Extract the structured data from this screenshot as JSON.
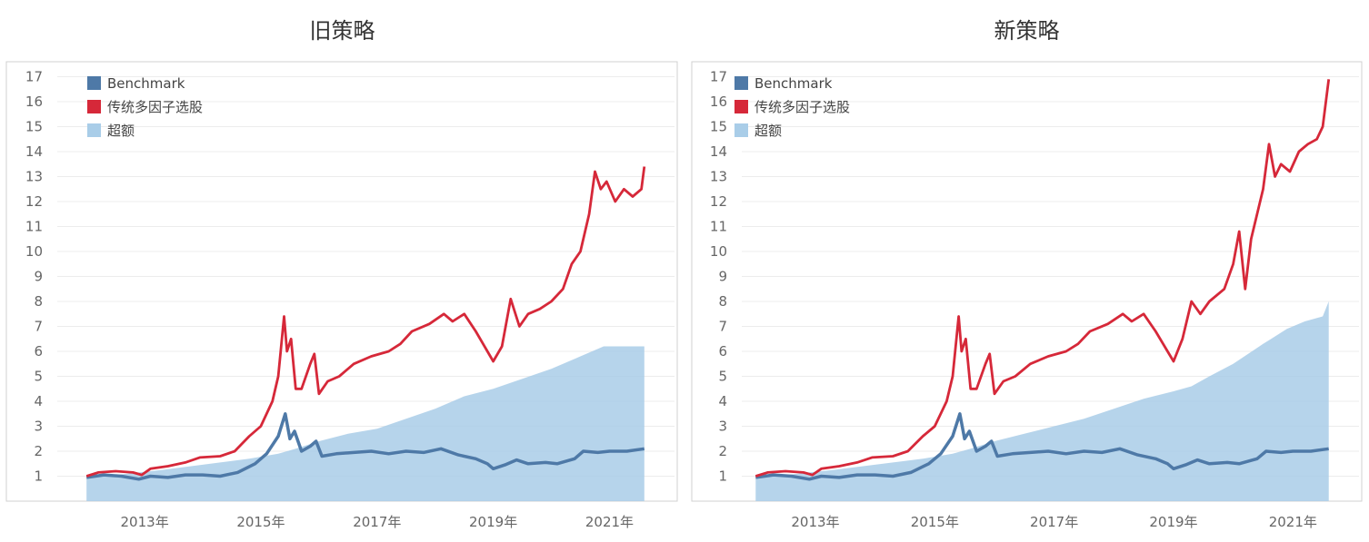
{
  "colors": {
    "benchmark": "#4e79a7",
    "strategy": "#d62839",
    "excess_fill": "#a9cde8",
    "grid": "#ececec",
    "frame": "#d0d0d0"
  },
  "chart_data": [
    {
      "type": "line",
      "title": "旧策略",
      "xlabel": "",
      "ylabel": "",
      "x_range": [
        2011.95,
        2021.65
      ],
      "ylim": [
        0,
        17.6
      ],
      "y_ticks": [
        1,
        2,
        3,
        4,
        5,
        6,
        7,
        8,
        9,
        10,
        11,
        12,
        13,
        14,
        15,
        16,
        17
      ],
      "x_ticks": [
        {
          "x": 2013,
          "label": "2013年"
        },
        {
          "x": 2015,
          "label": "2015年"
        },
        {
          "x": 2017,
          "label": "2017年"
        },
        {
          "x": 2019,
          "label": "2019年"
        },
        {
          "x": 2021,
          "label": "2021年"
        }
      ],
      "grid": true,
      "legend_position": "top-left",
      "series": [
        {
          "name": "Benchmark",
          "kind": "line",
          "points": [
            [
              2012.0,
              0.95
            ],
            [
              2012.3,
              1.05
            ],
            [
              2012.6,
              1.0
            ],
            [
              2012.9,
              0.88
            ],
            [
              2013.1,
              1.0
            ],
            [
              2013.4,
              0.95
            ],
            [
              2013.7,
              1.05
            ],
            [
              2014.0,
              1.05
            ],
            [
              2014.3,
              1.0
            ],
            [
              2014.6,
              1.15
            ],
            [
              2014.9,
              1.5
            ],
            [
              2015.1,
              1.9
            ],
            [
              2015.3,
              2.6
            ],
            [
              2015.42,
              3.5
            ],
            [
              2015.5,
              2.5
            ],
            [
              2015.58,
              2.8
            ],
            [
              2015.7,
              2.0
            ],
            [
              2015.85,
              2.2
            ],
            [
              2015.95,
              2.4
            ],
            [
              2016.05,
              1.8
            ],
            [
              2016.3,
              1.9
            ],
            [
              2016.6,
              1.95
            ],
            [
              2016.9,
              2.0
            ],
            [
              2017.2,
              1.9
            ],
            [
              2017.5,
              2.0
            ],
            [
              2017.8,
              1.95
            ],
            [
              2018.1,
              2.1
            ],
            [
              2018.4,
              1.85
            ],
            [
              2018.7,
              1.7
            ],
            [
              2018.9,
              1.5
            ],
            [
              2019.0,
              1.3
            ],
            [
              2019.2,
              1.45
            ],
            [
              2019.4,
              1.65
            ],
            [
              2019.6,
              1.5
            ],
            [
              2019.9,
              1.55
            ],
            [
              2020.1,
              1.5
            ],
            [
              2020.4,
              1.7
            ],
            [
              2020.55,
              2.0
            ],
            [
              2020.8,
              1.95
            ],
            [
              2021.0,
              2.0
            ],
            [
              2021.3,
              2.0
            ],
            [
              2021.6,
              2.1
            ]
          ]
        },
        {
          "name": "传统多因子选股",
          "kind": "line",
          "points": [
            [
              2012.0,
              1.0
            ],
            [
              2012.2,
              1.15
            ],
            [
              2012.5,
              1.2
            ],
            [
              2012.8,
              1.15
            ],
            [
              2012.95,
              1.05
            ],
            [
              2013.1,
              1.3
            ],
            [
              2013.4,
              1.4
            ],
            [
              2013.7,
              1.55
            ],
            [
              2013.95,
              1.75
            ],
            [
              2014.3,
              1.8
            ],
            [
              2014.55,
              2.0
            ],
            [
              2014.8,
              2.6
            ],
            [
              2015.0,
              3.0
            ],
            [
              2015.2,
              4.0
            ],
            [
              2015.3,
              5.0
            ],
            [
              2015.4,
              7.4
            ],
            [
              2015.45,
              6.0
            ],
            [
              2015.52,
              6.5
            ],
            [
              2015.6,
              4.5
            ],
            [
              2015.7,
              4.5
            ],
            [
              2015.85,
              5.5
            ],
            [
              2015.92,
              5.9
            ],
            [
              2016.0,
              4.3
            ],
            [
              2016.15,
              4.8
            ],
            [
              2016.35,
              5.0
            ],
            [
              2016.6,
              5.5
            ],
            [
              2016.9,
              5.8
            ],
            [
              2017.2,
              6.0
            ],
            [
              2017.4,
              6.3
            ],
            [
              2017.6,
              6.8
            ],
            [
              2017.9,
              7.1
            ],
            [
              2018.15,
              7.5
            ],
            [
              2018.3,
              7.2
            ],
            [
              2018.5,
              7.5
            ],
            [
              2018.7,
              6.8
            ],
            [
              2018.9,
              6.0
            ],
            [
              2019.0,
              5.6
            ],
            [
              2019.15,
              6.2
            ],
            [
              2019.3,
              8.1
            ],
            [
              2019.45,
              7.0
            ],
            [
              2019.6,
              7.5
            ],
            [
              2019.8,
              7.7
            ],
            [
              2020.0,
              8.0
            ],
            [
              2020.2,
              8.5
            ],
            [
              2020.35,
              9.5
            ],
            [
              2020.5,
              10.0
            ],
            [
              2020.65,
              11.5
            ],
            [
              2020.75,
              13.2
            ],
            [
              2020.85,
              12.5
            ],
            [
              2020.95,
              12.8
            ],
            [
              2021.1,
              12.0
            ],
            [
              2021.25,
              12.5
            ],
            [
              2021.4,
              12.2
            ],
            [
              2021.55,
              12.5
            ],
            [
              2021.6,
              13.4
            ]
          ]
        },
        {
          "name": "超额",
          "kind": "area",
          "points": [
            [
              2012.0,
              1.0
            ],
            [
              2012.5,
              1.05
            ],
            [
              2012.9,
              1.15
            ],
            [
              2013.3,
              1.25
            ],
            [
              2013.8,
              1.4
            ],
            [
              2014.3,
              1.55
            ],
            [
              2014.8,
              1.7
            ],
            [
              2015.3,
              1.9
            ],
            [
              2015.6,
              2.1
            ],
            [
              2016.0,
              2.4
            ],
            [
              2016.5,
              2.7
            ],
            [
              2017.0,
              2.9
            ],
            [
              2017.5,
              3.3
            ],
            [
              2018.0,
              3.7
            ],
            [
              2018.5,
              4.2
            ],
            [
              2019.0,
              4.5
            ],
            [
              2019.5,
              4.9
            ],
            [
              2020.0,
              5.3
            ],
            [
              2020.5,
              5.8
            ],
            [
              2020.9,
              6.2
            ],
            [
              2021.3,
              6.2
            ],
            [
              2021.6,
              6.2
            ]
          ]
        }
      ]
    },
    {
      "type": "line",
      "title": "新策略",
      "xlabel": "",
      "ylabel": "",
      "x_range": [
        2011.95,
        2021.65
      ],
      "ylim": [
        0,
        17.6
      ],
      "y_ticks": [
        1,
        2,
        3,
        4,
        5,
        6,
        7,
        8,
        9,
        10,
        11,
        12,
        13,
        14,
        15,
        16,
        17
      ],
      "x_ticks": [
        {
          "x": 2013,
          "label": "2013年"
        },
        {
          "x": 2015,
          "label": "2015年"
        },
        {
          "x": 2017,
          "label": "2017年"
        },
        {
          "x": 2019,
          "label": "2019年"
        },
        {
          "x": 2021,
          "label": "2021年"
        }
      ],
      "grid": true,
      "legend_position": "top-left",
      "series": [
        {
          "name": "Benchmark",
          "kind": "line",
          "points": [
            [
              2012.0,
              0.95
            ],
            [
              2012.3,
              1.05
            ],
            [
              2012.6,
              1.0
            ],
            [
              2012.9,
              0.88
            ],
            [
              2013.1,
              1.0
            ],
            [
              2013.4,
              0.95
            ],
            [
              2013.7,
              1.05
            ],
            [
              2014.0,
              1.05
            ],
            [
              2014.3,
              1.0
            ],
            [
              2014.6,
              1.15
            ],
            [
              2014.9,
              1.5
            ],
            [
              2015.1,
              1.9
            ],
            [
              2015.3,
              2.6
            ],
            [
              2015.42,
              3.5
            ],
            [
              2015.5,
              2.5
            ],
            [
              2015.58,
              2.8
            ],
            [
              2015.7,
              2.0
            ],
            [
              2015.85,
              2.2
            ],
            [
              2015.95,
              2.4
            ],
            [
              2016.05,
              1.8
            ],
            [
              2016.3,
              1.9
            ],
            [
              2016.6,
              1.95
            ],
            [
              2016.9,
              2.0
            ],
            [
              2017.2,
              1.9
            ],
            [
              2017.5,
              2.0
            ],
            [
              2017.8,
              1.95
            ],
            [
              2018.1,
              2.1
            ],
            [
              2018.4,
              1.85
            ],
            [
              2018.7,
              1.7
            ],
            [
              2018.9,
              1.5
            ],
            [
              2019.0,
              1.3
            ],
            [
              2019.2,
              1.45
            ],
            [
              2019.4,
              1.65
            ],
            [
              2019.6,
              1.5
            ],
            [
              2019.9,
              1.55
            ],
            [
              2020.1,
              1.5
            ],
            [
              2020.4,
              1.7
            ],
            [
              2020.55,
              2.0
            ],
            [
              2020.8,
              1.95
            ],
            [
              2021.0,
              2.0
            ],
            [
              2021.3,
              2.0
            ],
            [
              2021.6,
              2.1
            ]
          ]
        },
        {
          "name": "传统多因子选股",
          "kind": "line",
          "points": [
            [
              2012.0,
              1.0
            ],
            [
              2012.2,
              1.15
            ],
            [
              2012.5,
              1.2
            ],
            [
              2012.8,
              1.15
            ],
            [
              2012.95,
              1.05
            ],
            [
              2013.1,
              1.3
            ],
            [
              2013.4,
              1.4
            ],
            [
              2013.7,
              1.55
            ],
            [
              2013.95,
              1.75
            ],
            [
              2014.3,
              1.8
            ],
            [
              2014.55,
              2.0
            ],
            [
              2014.8,
              2.6
            ],
            [
              2015.0,
              3.0
            ],
            [
              2015.2,
              4.0
            ],
            [
              2015.3,
              5.0
            ],
            [
              2015.4,
              7.4
            ],
            [
              2015.45,
              6.0
            ],
            [
              2015.52,
              6.5
            ],
            [
              2015.6,
              4.5
            ],
            [
              2015.7,
              4.5
            ],
            [
              2015.85,
              5.5
            ],
            [
              2015.92,
              5.9
            ],
            [
              2016.0,
              4.3
            ],
            [
              2016.15,
              4.8
            ],
            [
              2016.35,
              5.0
            ],
            [
              2016.6,
              5.5
            ],
            [
              2016.9,
              5.8
            ],
            [
              2017.2,
              6.0
            ],
            [
              2017.4,
              6.3
            ],
            [
              2017.6,
              6.8
            ],
            [
              2017.9,
              7.1
            ],
            [
              2018.15,
              7.5
            ],
            [
              2018.3,
              7.2
            ],
            [
              2018.5,
              7.5
            ],
            [
              2018.7,
              6.8
            ],
            [
              2018.9,
              6.0
            ],
            [
              2019.0,
              5.6
            ],
            [
              2019.15,
              6.5
            ],
            [
              2019.3,
              8.0
            ],
            [
              2019.45,
              7.5
            ],
            [
              2019.6,
              8.0
            ],
            [
              2019.85,
              8.5
            ],
            [
              2020.0,
              9.5
            ],
            [
              2020.1,
              10.8
            ],
            [
              2020.2,
              8.5
            ],
            [
              2020.3,
              10.5
            ],
            [
              2020.5,
              12.5
            ],
            [
              2020.6,
              14.3
            ],
            [
              2020.7,
              13.0
            ],
            [
              2020.8,
              13.5
            ],
            [
              2020.95,
              13.2
            ],
            [
              2021.1,
              14.0
            ],
            [
              2021.25,
              14.3
            ],
            [
              2021.4,
              14.5
            ],
            [
              2021.5,
              15.0
            ],
            [
              2021.6,
              16.9
            ]
          ]
        },
        {
          "name": "超额",
          "kind": "area",
          "points": [
            [
              2012.0,
              1.0
            ],
            [
              2012.5,
              1.05
            ],
            [
              2012.9,
              1.15
            ],
            [
              2013.3,
              1.25
            ],
            [
              2013.8,
              1.4
            ],
            [
              2014.3,
              1.55
            ],
            [
              2014.8,
              1.7
            ],
            [
              2015.3,
              1.9
            ],
            [
              2015.6,
              2.1
            ],
            [
              2016.0,
              2.4
            ],
            [
              2016.5,
              2.7
            ],
            [
              2017.0,
              3.0
            ],
            [
              2017.5,
              3.3
            ],
            [
              2018.0,
              3.7
            ],
            [
              2018.5,
              4.1
            ],
            [
              2019.0,
              4.4
            ],
            [
              2019.3,
              4.6
            ],
            [
              2019.6,
              5.0
            ],
            [
              2020.0,
              5.5
            ],
            [
              2020.5,
              6.3
            ],
            [
              2020.9,
              6.9
            ],
            [
              2021.2,
              7.2
            ],
            [
              2021.5,
              7.4
            ],
            [
              2021.6,
              8.0
            ]
          ]
        }
      ]
    }
  ]
}
